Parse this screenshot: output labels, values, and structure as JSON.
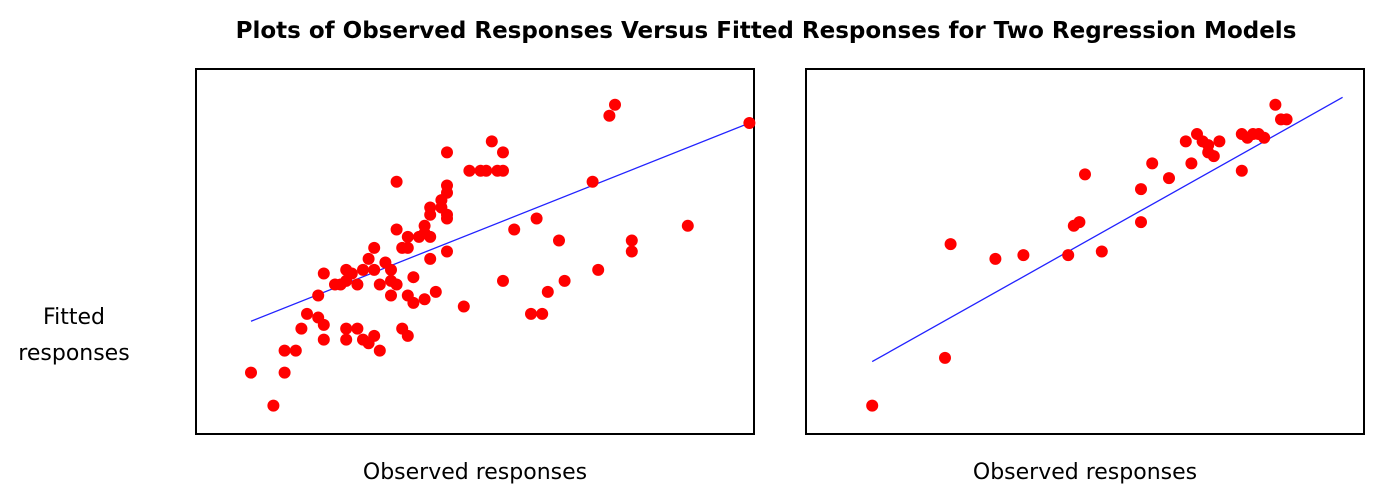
{
  "title": "Plots of Observed Responses Versus Fitted Responses for Two Regression Models",
  "ylabel": "Fitted\nresponses",
  "colors": {
    "points": "#ff0000",
    "line": "#2222ff",
    "frame": "#000000"
  },
  "chart_data": [
    {
      "type": "scatter",
      "xlabel": "Observed responses",
      "ylabel": "Fitted responses",
      "xlim": [
        0,
        100
      ],
      "ylim": [
        0,
        100
      ],
      "grid": false,
      "fit_line": {
        "x": [
          10,
          99
        ],
        "y": [
          31,
          85
        ]
      },
      "points": [
        {
          "x": 10,
          "y": 17
        },
        {
          "x": 14,
          "y": 8
        },
        {
          "x": 16,
          "y": 17
        },
        {
          "x": 16,
          "y": 23
        },
        {
          "x": 18,
          "y": 23
        },
        {
          "x": 19,
          "y": 29
        },
        {
          "x": 20,
          "y": 33
        },
        {
          "x": 22,
          "y": 32
        },
        {
          "x": 22,
          "y": 38
        },
        {
          "x": 23,
          "y": 26
        },
        {
          "x": 23,
          "y": 30
        },
        {
          "x": 23,
          "y": 44
        },
        {
          "x": 25,
          "y": 41
        },
        {
          "x": 26,
          "y": 41
        },
        {
          "x": 27,
          "y": 42
        },
        {
          "x": 27,
          "y": 26
        },
        {
          "x": 27,
          "y": 29
        },
        {
          "x": 27,
          "y": 45
        },
        {
          "x": 28,
          "y": 44
        },
        {
          "x": 29,
          "y": 29
        },
        {
          "x": 29,
          "y": 41
        },
        {
          "x": 30,
          "y": 26
        },
        {
          "x": 30,
          "y": 45
        },
        {
          "x": 31,
          "y": 48
        },
        {
          "x": 31,
          "y": 25
        },
        {
          "x": 32,
          "y": 27
        },
        {
          "x": 32,
          "y": 45
        },
        {
          "x": 32,
          "y": 51
        },
        {
          "x": 33,
          "y": 23
        },
        {
          "x": 33,
          "y": 41
        },
        {
          "x": 34,
          "y": 47
        },
        {
          "x": 35,
          "y": 38
        },
        {
          "x": 35,
          "y": 42
        },
        {
          "x": 35,
          "y": 45
        },
        {
          "x": 36,
          "y": 41
        },
        {
          "x": 36,
          "y": 69
        },
        {
          "x": 36,
          "y": 56
        },
        {
          "x": 37,
          "y": 51
        },
        {
          "x": 37,
          "y": 29
        },
        {
          "x": 38,
          "y": 27
        },
        {
          "x": 38,
          "y": 38
        },
        {
          "x": 38,
          "y": 51
        },
        {
          "x": 38,
          "y": 54
        },
        {
          "x": 39,
          "y": 43
        },
        {
          "x": 39,
          "y": 36
        },
        {
          "x": 40,
          "y": 54
        },
        {
          "x": 41,
          "y": 57
        },
        {
          "x": 41,
          "y": 55
        },
        {
          "x": 41,
          "y": 37
        },
        {
          "x": 42,
          "y": 48
        },
        {
          "x": 42,
          "y": 62
        },
        {
          "x": 42,
          "y": 60
        },
        {
          "x": 42,
          "y": 54
        },
        {
          "x": 43,
          "y": 39
        },
        {
          "x": 44,
          "y": 62
        },
        {
          "x": 44,
          "y": 64
        },
        {
          "x": 45,
          "y": 50
        },
        {
          "x": 45,
          "y": 60
        },
        {
          "x": 45,
          "y": 59
        },
        {
          "x": 45,
          "y": 68
        },
        {
          "x": 45,
          "y": 66
        },
        {
          "x": 45,
          "y": 77
        },
        {
          "x": 48,
          "y": 35
        },
        {
          "x": 49,
          "y": 72
        },
        {
          "x": 51,
          "y": 72
        },
        {
          "x": 52,
          "y": 72
        },
        {
          "x": 53,
          "y": 80
        },
        {
          "x": 54,
          "y": 72
        },
        {
          "x": 55,
          "y": 72
        },
        {
          "x": 55,
          "y": 77
        },
        {
          "x": 55,
          "y": 42
        },
        {
          "x": 57,
          "y": 56
        },
        {
          "x": 60,
          "y": 33
        },
        {
          "x": 61,
          "y": 59
        },
        {
          "x": 62,
          "y": 33
        },
        {
          "x": 63,
          "y": 39
        },
        {
          "x": 65,
          "y": 53
        },
        {
          "x": 66,
          "y": 42
        },
        {
          "x": 71,
          "y": 69
        },
        {
          "x": 72,
          "y": 45
        },
        {
          "x": 74,
          "y": 87
        },
        {
          "x": 75,
          "y": 90
        },
        {
          "x": 78,
          "y": 53
        },
        {
          "x": 78,
          "y": 50
        },
        {
          "x": 88,
          "y": 57
        },
        {
          "x": 99,
          "y": 85
        }
      ]
    },
    {
      "type": "scatter",
      "xlabel": "Observed responses",
      "ylabel": "Fitted responses",
      "xlim": [
        0,
        100
      ],
      "ylim": [
        0,
        100
      ],
      "grid": false,
      "fit_line": {
        "x": [
          12,
          96
        ],
        "y": [
          20,
          92
        ]
      },
      "points": [
        {
          "x": 12,
          "y": 8
        },
        {
          "x": 25,
          "y": 21
        },
        {
          "x": 26,
          "y": 52
        },
        {
          "x": 34,
          "y": 48
        },
        {
          "x": 39,
          "y": 49
        },
        {
          "x": 47,
          "y": 49
        },
        {
          "x": 48,
          "y": 57
        },
        {
          "x": 49,
          "y": 58
        },
        {
          "x": 50,
          "y": 71
        },
        {
          "x": 53,
          "y": 50
        },
        {
          "x": 60,
          "y": 58
        },
        {
          "x": 60,
          "y": 67
        },
        {
          "x": 62,
          "y": 74
        },
        {
          "x": 65,
          "y": 70
        },
        {
          "x": 68,
          "y": 80
        },
        {
          "x": 69,
          "y": 74
        },
        {
          "x": 70,
          "y": 82
        },
        {
          "x": 71,
          "y": 80
        },
        {
          "x": 72,
          "y": 79
        },
        {
          "x": 72,
          "y": 77
        },
        {
          "x": 73,
          "y": 76
        },
        {
          "x": 74,
          "y": 80
        },
        {
          "x": 78,
          "y": 72
        },
        {
          "x": 78,
          "y": 82
        },
        {
          "x": 79,
          "y": 81
        },
        {
          "x": 80,
          "y": 82
        },
        {
          "x": 81,
          "y": 82
        },
        {
          "x": 82,
          "y": 81
        },
        {
          "x": 84,
          "y": 90
        },
        {
          "x": 85,
          "y": 86
        },
        {
          "x": 86,
          "y": 86
        }
      ]
    }
  ]
}
